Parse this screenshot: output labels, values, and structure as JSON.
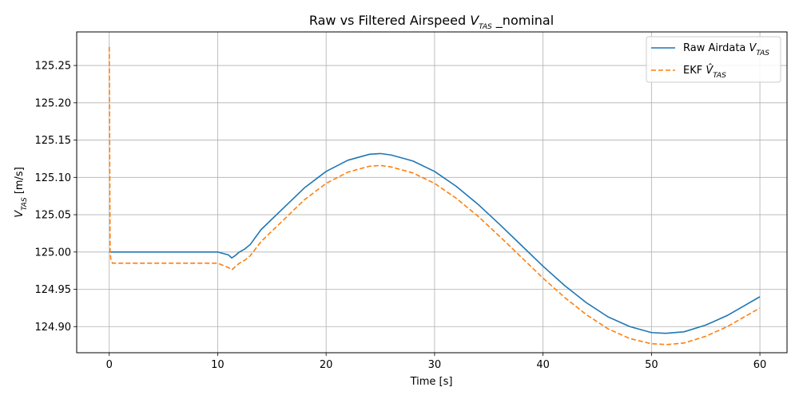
{
  "chart_data": {
    "type": "line",
    "title": "Raw vs Filtered Airspeed V_TAS _nominal",
    "title_parts": {
      "prefix": "Raw vs Filtered Airspeed ",
      "symbol": "V",
      "subscript": "TAS",
      "suffix": " _nominal"
    },
    "xlabel": "Time [s]",
    "ylabel_parts": {
      "symbol": "V",
      "subscript": "TAS",
      "suffix": " [m/s]"
    },
    "xlim": [
      -3,
      62.5
    ],
    "ylim": [
      124.865,
      125.295
    ],
    "x_ticks": [
      0,
      10,
      20,
      30,
      40,
      50,
      60
    ],
    "x_tick_labels": [
      "0",
      "10",
      "20",
      "30",
      "40",
      "50",
      "60"
    ],
    "y_ticks": [
      124.9,
      124.95,
      125.0,
      125.05,
      125.1,
      125.15,
      125.2,
      125.25
    ],
    "y_tick_labels": [
      "124.90",
      "124.95",
      "125.00",
      "125.05",
      "125.10",
      "125.15",
      "125.20",
      "125.25"
    ],
    "grid": true,
    "legend_position": "top-right",
    "series": [
      {
        "name": "Raw Airdata V_TAS",
        "legend_parts": {
          "prefix": "Raw Airdata ",
          "symbol": "V",
          "subscript": "TAS"
        },
        "color": "#1f77b4",
        "style": "solid",
        "x": [
          0,
          10,
          10.5,
          11,
          11.3,
          11.6,
          12,
          12.5,
          13,
          14,
          16,
          18,
          20,
          22,
          24,
          25,
          26,
          28,
          30,
          32,
          34,
          36,
          38,
          40,
          42,
          44,
          46,
          48,
          50,
          51.3,
          53,
          55,
          57,
          60
        ],
        "y": [
          125.0,
          125.0,
          124.998,
          124.996,
          124.992,
          124.995,
          125.0,
          125.004,
          125.01,
          125.03,
          125.058,
          125.086,
          125.108,
          125.123,
          125.131,
          125.132,
          125.13,
          125.122,
          125.108,
          125.088,
          125.064,
          125.037,
          125.009,
          124.981,
          124.955,
          124.932,
          124.913,
          124.9,
          124.892,
          124.891,
          124.893,
          124.902,
          124.915,
          124.94
        ]
      },
      {
        "name": "EKF V̂_TAS",
        "legend_parts": {
          "prefix": "EKF ",
          "symbol": "V̂",
          "subscript": "TAS"
        },
        "color": "#ff7f0e",
        "style": "dashed",
        "x": [
          0,
          0.08,
          0.15,
          0.3,
          10,
          10.5,
          11,
          11.3,
          11.6,
          12,
          12.5,
          13,
          14,
          16,
          18,
          20,
          22,
          24,
          25,
          26,
          28,
          30,
          32,
          34,
          36,
          38,
          40,
          42,
          44,
          46,
          48,
          50,
          51.5,
          53,
          55,
          57,
          60
        ],
        "y": [
          125.275,
          125.0,
          124.99,
          124.985,
          124.985,
          124.982,
          124.979,
          124.976,
          124.98,
          124.985,
          124.989,
          124.995,
          125.014,
          125.042,
          125.07,
          125.092,
          125.107,
          125.115,
          125.116,
          125.114,
          125.106,
          125.092,
          125.072,
          125.048,
          125.021,
          124.993,
          124.965,
          124.939,
          124.916,
          124.897,
          124.884,
          124.877,
          124.876,
          124.878,
          124.887,
          124.9,
          124.925
        ]
      }
    ]
  }
}
